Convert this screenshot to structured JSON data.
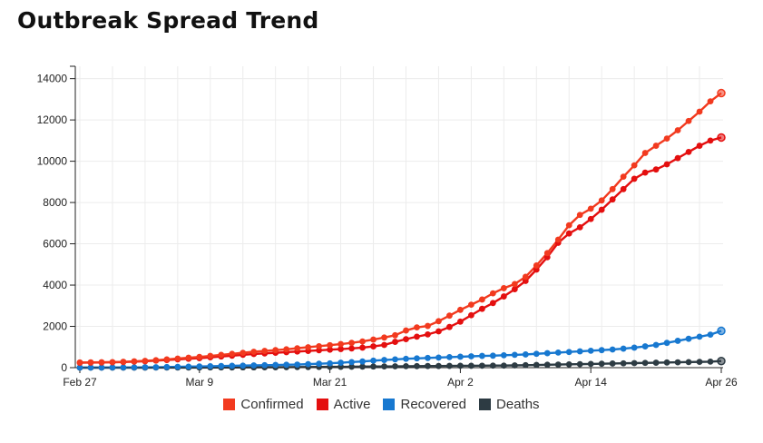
{
  "title": "Outbreak Spread Trend",
  "chart_data": {
    "type": "line",
    "title": "Outbreak Spread Trend",
    "xlabel": "",
    "ylabel": "",
    "x_start": "Feb 27",
    "x_end": "Apr 26",
    "x_ticks": [
      "Feb 27",
      "Mar 9",
      "Mar 21",
      "Apr 2",
      "Apr 14",
      "Apr 26"
    ],
    "y_ticks": [
      0,
      2000,
      4000,
      6000,
      8000,
      10000,
      12000,
      14000
    ],
    "ylim": [
      0,
      14600
    ],
    "grid": true,
    "legend_position": "bottom",
    "x": [
      "Feb 27",
      "Feb 28",
      "Feb 29",
      "Mar 1",
      "Mar 2",
      "Mar 3",
      "Mar 4",
      "Mar 5",
      "Mar 6",
      "Mar 7",
      "Mar 8",
      "Mar 9",
      "Mar 10",
      "Mar 11",
      "Mar 12",
      "Mar 13",
      "Mar 14",
      "Mar 15",
      "Mar 16",
      "Mar 17",
      "Mar 18",
      "Mar 19",
      "Mar 20",
      "Mar 21",
      "Mar 22",
      "Mar 23",
      "Mar 24",
      "Mar 25",
      "Mar 26",
      "Mar 27",
      "Mar 28",
      "Mar 29",
      "Mar 30",
      "Mar 31",
      "Apr 1",
      "Apr 2",
      "Apr 3",
      "Apr 4",
      "Apr 5",
      "Apr 6",
      "Apr 7",
      "Apr 8",
      "Apr 9",
      "Apr 10",
      "Apr 11",
      "Apr 12",
      "Apr 13",
      "Apr 14",
      "Apr 15",
      "Apr 16",
      "Apr 17",
      "Apr 18",
      "Apr 19",
      "Apr 20",
      "Apr 21",
      "Apr 22",
      "Apr 23",
      "Apr 24",
      "Apr 25",
      "Apr 26"
    ],
    "series": [
      {
        "name": "Confirmed",
        "color": "#f23a1f",
        "values": [
          250,
          255,
          262,
          270,
          285,
          305,
          330,
          360,
          400,
          440,
          480,
          520,
          570,
          620,
          670,
          720,
          770,
          810,
          850,
          890,
          940,
          990,
          1040,
          1090,
          1140,
          1200,
          1270,
          1360,
          1460,
          1570,
          1800,
          1950,
          2020,
          2250,
          2520,
          2800,
          3050,
          3300,
          3600,
          3850,
          4050,
          4400,
          4950,
          5550,
          6200,
          6900,
          7400,
          7700,
          8100,
          8650,
          9250,
          9800,
          10400,
          10750,
          11100,
          11500,
          11950,
          12400,
          12900,
          13300
        ]
      },
      {
        "name": "Active",
        "color": "#e40f0f",
        "values": [
          240,
          245,
          250,
          260,
          270,
          290,
          310,
          340,
          370,
          400,
          430,
          460,
          500,
          540,
          580,
          620,
          660,
          690,
          720,
          750,
          780,
          810,
          840,
          870,
          900,
          930,
          970,
          1030,
          1100,
          1250,
          1380,
          1500,
          1610,
          1760,
          1970,
          2230,
          2540,
          2850,
          3130,
          3450,
          3800,
          4200,
          4750,
          5350,
          6050,
          6500,
          6800,
          7200,
          7650,
          8150,
          8650,
          9150,
          9450,
          9600,
          9850,
          10150,
          10450,
          10750,
          11000,
          11150
        ]
      },
      {
        "name": "Recovered",
        "color": "#1778d0",
        "values": [
          5,
          5,
          5,
          10,
          10,
          10,
          20,
          20,
          30,
          40,
          50,
          60,
          70,
          80,
          90,
          100,
          110,
          120,
          130,
          140,
          150,
          170,
          190,
          210,
          240,
          270,
          300,
          340,
          370,
          400,
          430,
          450,
          470,
          490,
          510,
          530,
          550,
          570,
          580,
          600,
          620,
          640,
          670,
          700,
          730,
          760,
          790,
          820,
          850,
          880,
          920,
          970,
          1030,
          1100,
          1200,
          1300,
          1400,
          1500,
          1600,
          1780
        ]
      },
      {
        "name": "Deaths",
        "color": "#2d3b43",
        "values": [
          0,
          0,
          0,
          0,
          0,
          0,
          0,
          5,
          5,
          5,
          5,
          5,
          10,
          10,
          10,
          15,
          15,
          20,
          20,
          25,
          30,
          30,
          35,
          40,
          40,
          45,
          50,
          55,
          60,
          65,
          70,
          75,
          80,
          80,
          85,
          90,
          90,
          95,
          100,
          100,
          110,
          120,
          130,
          140,
          150,
          160,
          170,
          180,
          190,
          200,
          210,
          220,
          230,
          240,
          250,
          260,
          270,
          280,
          290,
          320
        ]
      }
    ]
  }
}
